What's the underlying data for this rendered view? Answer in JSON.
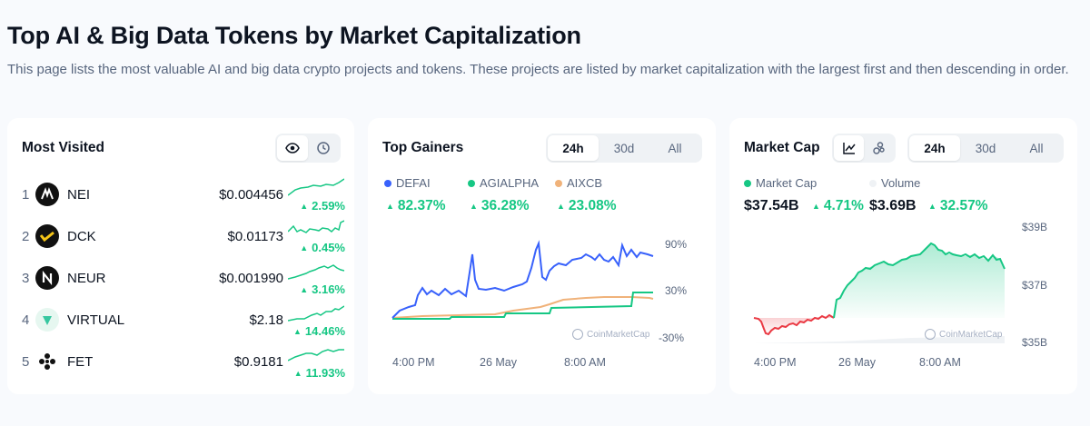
{
  "header": {
    "title": "Top AI & Big Data Tokens by Market Capitalization",
    "description": "This page lists the most valuable AI and big data crypto projects and tokens. These projects are listed by market capitalization with the largest first and then descending in order."
  },
  "most_visited": {
    "title": "Most Visited",
    "icons": [
      "eye-icon",
      "clock-icon"
    ],
    "items": [
      {
        "rank": "1",
        "symbol": "NEI",
        "price": "$0.004456",
        "change": "2.59%",
        "logo_color": "#111111"
      },
      {
        "rank": "2",
        "symbol": "DCK",
        "price": "$0.01173",
        "change": "0.45%",
        "logo_color": "#111111"
      },
      {
        "rank": "3",
        "symbol": "NEUR",
        "price": "$0.001990",
        "change": "3.16%",
        "logo_color": "#111111"
      },
      {
        "rank": "4",
        "symbol": "VIRTUAL",
        "price": "$2.18",
        "change": "14.46%",
        "logo_color": "#e6f7f0"
      },
      {
        "rank": "5",
        "symbol": "FET",
        "price": "$0.9181",
        "change": "11.93%",
        "logo_color": "#ffffff"
      }
    ]
  },
  "top_gainers": {
    "title": "Top Gainers",
    "tabs": [
      "24h",
      "30d",
      "All"
    ],
    "active_tab": "24h",
    "legend": [
      {
        "name": "DEFAI",
        "change": "82.37%",
        "color": "#3861fb"
      },
      {
        "name": "AGIALPHA",
        "change": "36.28%",
        "color": "#16c784"
      },
      {
        "name": "AIXCB",
        "change": "23.08%",
        "color": "#f0b27a"
      }
    ],
    "y_ticks": [
      "90%",
      "30%",
      "-30%"
    ],
    "x_ticks": [
      "4:00 PM",
      "26 May",
      "8:00 AM"
    ],
    "watermark": "CoinMarketCap"
  },
  "market_cap": {
    "title": "Market Cap",
    "icons": [
      "line-chart-icon",
      "bubbles-icon"
    ],
    "tabs": [
      "24h",
      "30d",
      "All"
    ],
    "active_tab": "24h",
    "legend": [
      {
        "name": "Market Cap",
        "color": "#16c784"
      },
      {
        "name": "Volume",
        "color": "#eff2f5"
      }
    ],
    "market_cap_value": "$37.54B",
    "market_cap_change": "4.71%",
    "volume_value": "$3.69B",
    "volume_change": "32.57%",
    "y_ticks": [
      "$39B",
      "$37B",
      "$35B"
    ],
    "x_ticks": [
      "4:00 PM",
      "26 May",
      "8:00 AM"
    ],
    "watermark": "CoinMarketCap"
  }
}
